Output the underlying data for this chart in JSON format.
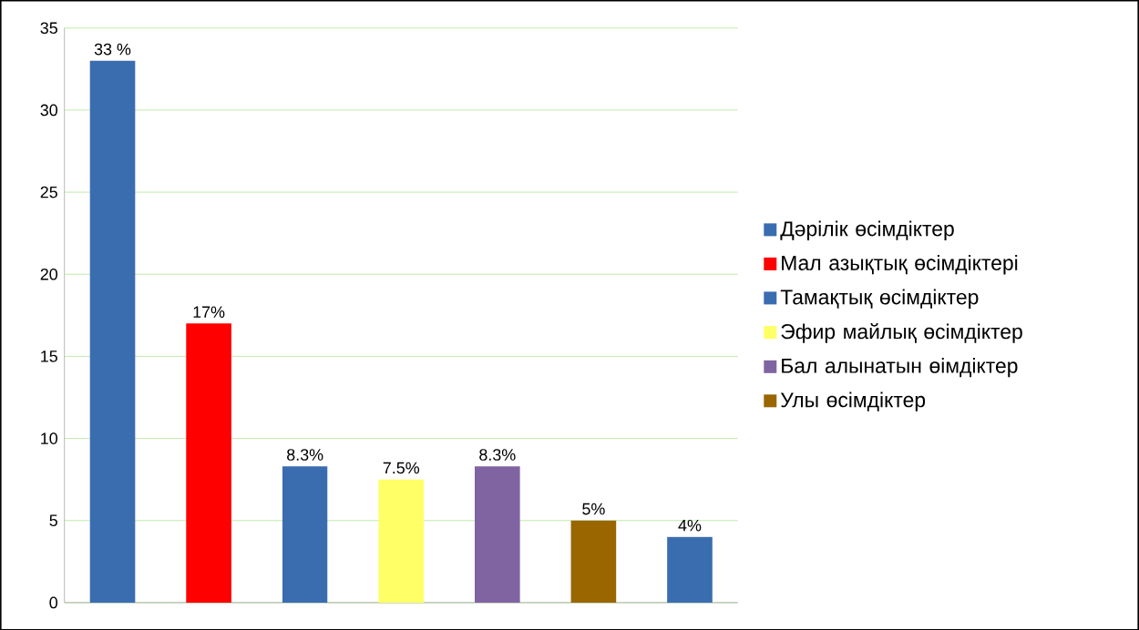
{
  "chart_data": {
    "type": "bar",
    "categories": [
      null,
      null,
      null,
      null,
      null,
      null,
      null
    ],
    "series": [
      {
        "name": "Дәрілік өсімдіктер",
        "color": "#3a6db0",
        "values": [
          33,
          null,
          null,
          null,
          null,
          null,
          null
        ],
        "value_labels": [
          "33 %",
          null,
          null,
          null,
          null,
          null,
          null
        ]
      },
      {
        "name": "Мал азықтық өсімдіктері",
        "color": "#ff0000",
        "values": [
          null,
          17,
          null,
          null,
          null,
          null,
          null
        ],
        "value_labels": [
          null,
          "17%",
          null,
          null,
          null,
          null,
          null
        ]
      },
      {
        "name": "Тамақтық өсімдіктер",
        "color": "#3a6db0",
        "values": [
          null,
          null,
          8.3,
          null,
          null,
          null,
          null
        ],
        "value_labels": [
          null,
          null,
          "8.3%",
          null,
          null,
          null,
          null
        ]
      },
      {
        "name": "Эфир майлық өсімдіктер",
        "color": "#ffff66",
        "values": [
          null,
          null,
          null,
          7.5,
          null,
          null,
          null
        ],
        "value_labels": [
          null,
          null,
          null,
          "7.5%",
          null,
          null,
          null
        ]
      },
      {
        "name": "Бал алынатын өімдіктер",
        "color": "#8064a2",
        "values": [
          null,
          null,
          null,
          null,
          8.3,
          null,
          null
        ],
        "value_labels": [
          null,
          null,
          null,
          null,
          "8.3%",
          null,
          null
        ]
      },
      {
        "name": "Улы өсімдіктер",
        "color": "#996600",
        "values": [
          null,
          null,
          null,
          null,
          null,
          5,
          null
        ],
        "value_labels": [
          null,
          null,
          null,
          null,
          null,
          "5%",
          null
        ]
      },
      {
        "color": "#3a6db0",
        "values": [
          null,
          null,
          null,
          null,
          null,
          null,
          4
        ],
        "value_labels": [
          null,
          null,
          null,
          null,
          null,
          null,
          "4%"
        ]
      }
    ],
    "ylim": [
      0,
      35
    ],
    "yticks": [
      0,
      5,
      10,
      15,
      20,
      25,
      30,
      35
    ],
    "grid": "y",
    "legend": "right",
    "tick_labels": "y"
  }
}
